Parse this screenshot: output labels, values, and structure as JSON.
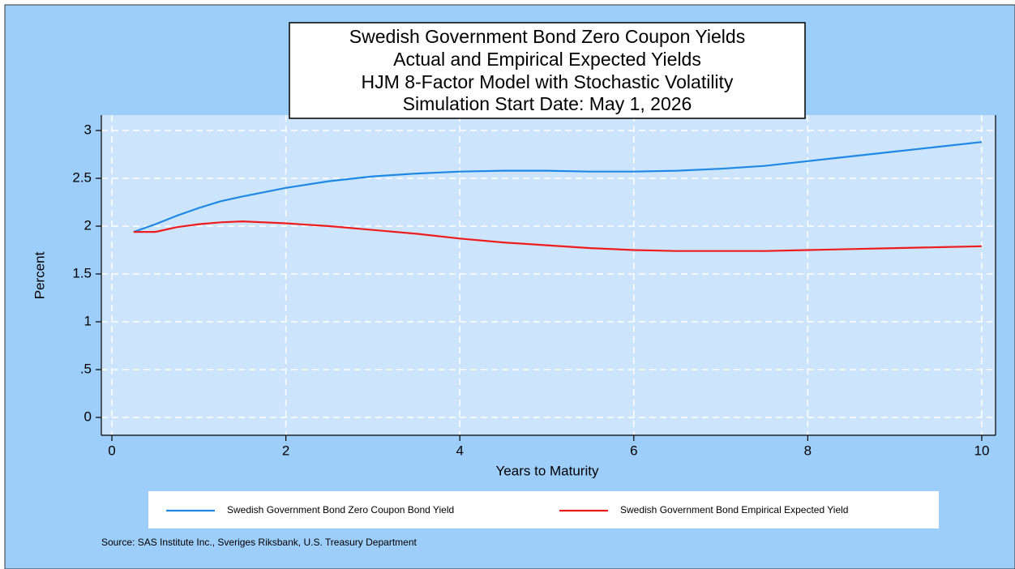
{
  "chart_data": {
    "type": "line",
    "title": [
      "Swedish Government Bond Zero Coupon Yields",
      "Actual and Empirical Expected Yields",
      "HJM 8-Factor Model with Stochastic Volatility",
      "Simulation Start Date: May 1, 2026"
    ],
    "x_label": "Years to Maturity",
    "y_label": "Percent",
    "note": "Source: SAS Institute Inc., Sveriges Riksbank, U.S. Treasury Department",
    "x": [
      0.25,
      0.5,
      0.75,
      1,
      1.25,
      1.5,
      2,
      2.5,
      3,
      3.5,
      4,
      4.5,
      5,
      5.5,
      6,
      6.5,
      7,
      7.5,
      8,
      8.5,
      9,
      9.5,
      10
    ],
    "series": [
      {
        "name": "Swedish Government Bond Zero Coupon Bond Yield",
        "color": "#1e88e5",
        "values": [
          1.94,
          2.02,
          2.11,
          2.19,
          2.26,
          2.31,
          2.4,
          2.47,
          2.52,
          2.55,
          2.57,
          2.58,
          2.58,
          2.57,
          2.57,
          2.58,
          2.6,
          2.63,
          2.68,
          2.73,
          2.78,
          2.83,
          2.88
        ]
      },
      {
        "name": "Swedish Government Bond Empirical Expected Yield",
        "color": "#ee1c1c",
        "values": [
          1.94,
          1.94,
          1.99,
          2.02,
          2.04,
          2.05,
          2.03,
          2.0,
          1.96,
          1.92,
          1.87,
          1.83,
          1.8,
          1.77,
          1.75,
          1.74,
          1.74,
          1.74,
          1.75,
          1.76,
          1.77,
          1.78,
          1.79
        ]
      }
    ],
    "xlim": [
      0,
      10
    ],
    "xticks": [
      0,
      2,
      4,
      6,
      8,
      10
    ],
    "ylim": [
      0,
      3
    ],
    "yticks": [
      0,
      {
        "value": 0.5,
        "label": ".5"
      },
      1,
      1.5,
      2,
      2.5,
      3
    ],
    "grid": true,
    "legend": "bottom"
  }
}
